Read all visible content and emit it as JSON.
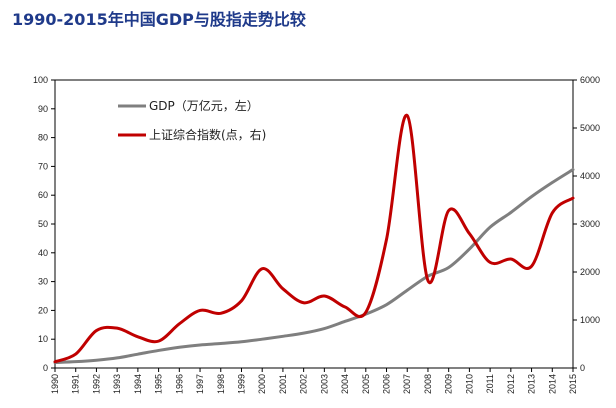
{
  "title": "1990-2015年中国GDP与股指走势比较",
  "chart_data": {
    "type": "line",
    "title": "1990-2015年中国GDP与股指走势比较",
    "x": [
      1990,
      1991,
      1992,
      1993,
      1994,
      1995,
      1996,
      1997,
      1998,
      1999,
      2000,
      2001,
      2002,
      2003,
      2004,
      2005,
      2006,
      2007,
      2008,
      2009,
      2010,
      2011,
      2012,
      2013,
      2014,
      2015
    ],
    "x_tick_labels": [
      "1990",
      "1991",
      "1992",
      "1993",
      "1994",
      "1995",
      "1996",
      "1997",
      "1998",
      "1999",
      "2000",
      "2001",
      "2002",
      "2003",
      "2004",
      "2005",
      "2006",
      "2007",
      "2008",
      "2009",
      "2010",
      "2011",
      "2012",
      "2013",
      "2014",
      "2015"
    ],
    "y_left": {
      "range": [
        0,
        100
      ],
      "ticks": [
        0,
        10,
        20,
        30,
        40,
        50,
        60,
        70,
        80,
        90,
        100
      ],
      "tick_labels": [
        "0",
        "10",
        "20",
        "30",
        "40",
        "50",
        "60",
        "70",
        "80",
        "90",
        "100"
      ]
    },
    "y_right": {
      "range": [
        0,
        6000
      ],
      "ticks": [
        0,
        1000,
        2000,
        3000,
        4000,
        5000,
        6000
      ],
      "tick_labels": [
        "0",
        "1000",
        "2000",
        "3000",
        "4000",
        "5000",
        "6000"
      ]
    },
    "legend_position": "top-left",
    "series": [
      {
        "name": "GDP（万亿元，左）",
        "axis": "left",
        "color": "#7f7f7f",
        "values": [
          1.9,
          2.2,
          2.7,
          3.5,
          4.8,
          6.1,
          7.2,
          8.0,
          8.5,
          9.1,
          10.0,
          11.0,
          12.1,
          13.7,
          16.2,
          18.7,
          22.0,
          27.0,
          31.9,
          34.9,
          41.3,
          48.9,
          54.0,
          59.5,
          64.4,
          68.9
        ]
      },
      {
        "name": "上证综合指数(点，右)",
        "axis": "right",
        "color": "#c00000",
        "values": [
          130,
          290,
          780,
          830,
          650,
          560,
          920,
          1200,
          1140,
          1400,
          2070,
          1650,
          1360,
          1500,
          1270,
          1160,
          2680,
          5260,
          1820,
          3280,
          2800,
          2200,
          2270,
          2120,
          3230,
          3540
        ]
      }
    ]
  }
}
